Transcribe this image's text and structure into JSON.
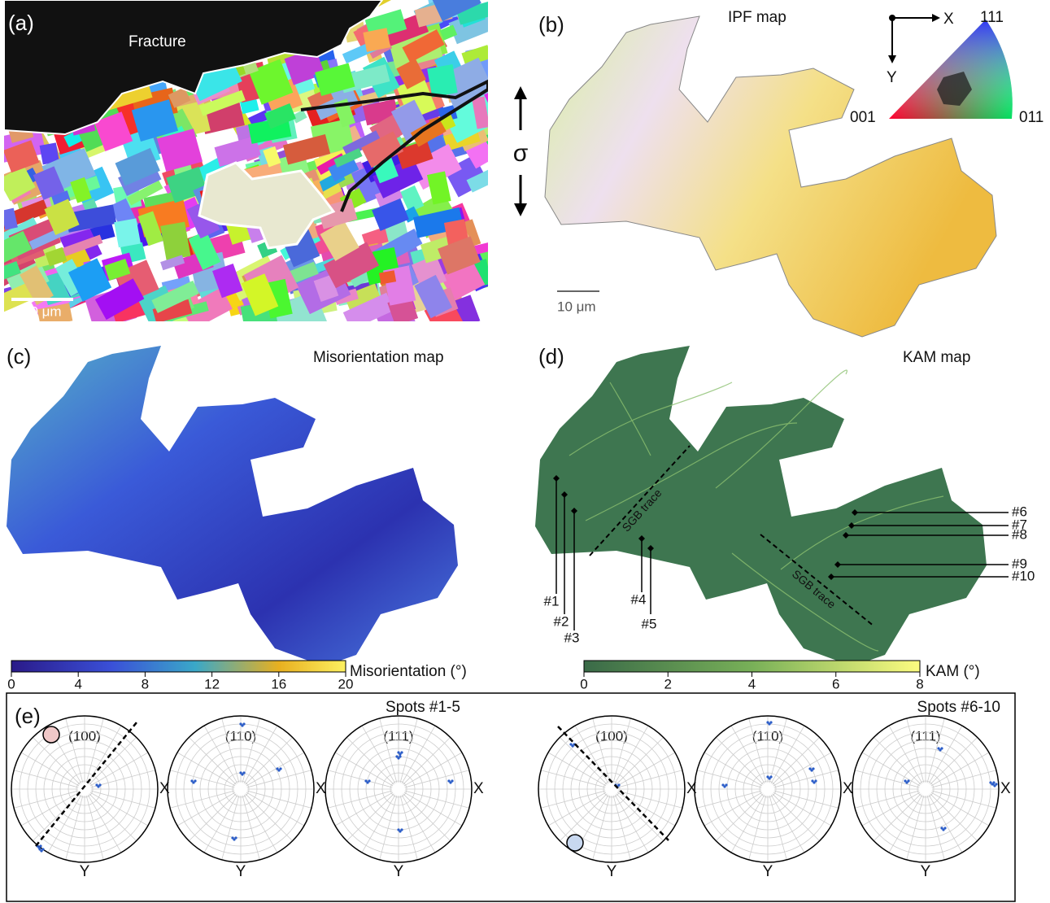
{
  "panels": {
    "a": {
      "label": "(a)",
      "fracture": "Fracture",
      "scale_bar": "40 μm"
    },
    "b": {
      "label": "(b)",
      "title": "IPF map",
      "axis_x": "X",
      "axis_y": "Y",
      "corner_111": "111",
      "corner_001": "001",
      "corner_011": "011",
      "stress": "σ",
      "scale_bar": "10 μm"
    },
    "c": {
      "label": "(c)",
      "title": "Misorientation map",
      "colorbar": {
        "label": "Misorientation (°)",
        "ticks": [
          0,
          4,
          8,
          12,
          16,
          20
        ]
      }
    },
    "d": {
      "label": "(d)",
      "title": "KAM map",
      "traces": [
        "SGB trace",
        "SGB trace"
      ],
      "spots": [
        "#1",
        "#2",
        "#3",
        "#4",
        "#5",
        "#6",
        "#7",
        "#8",
        "#9",
        "#10"
      ],
      "colorbar": {
        "label": "KAM (°)",
        "ticks": [
          0,
          2,
          4,
          6,
          8
        ]
      }
    },
    "e": {
      "label": "(e)",
      "axis_x": "X",
      "axis_y": "Y",
      "groups": [
        {
          "title": "Spots #1-5",
          "poles": [
            "(100)",
            "(110)",
            "(111)"
          ]
        },
        {
          "title": "Spots #6-10",
          "poles": [
            "(100)",
            "(110)",
            "(111)"
          ]
        }
      ]
    }
  }
}
